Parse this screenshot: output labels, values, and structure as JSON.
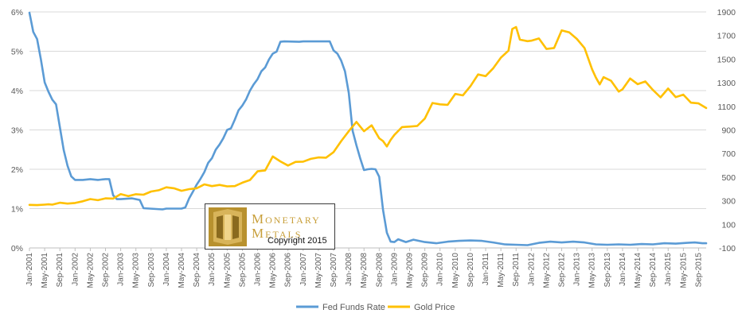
{
  "chart_data": {
    "type": "line",
    "title": "",
    "x_axis": {
      "tick_labels": [
        "Jan-2001",
        "May-2001",
        "Sep-2001",
        "Jan-2002",
        "May-2002",
        "Sep-2002",
        "Jan-2003",
        "May-2003",
        "Sep-2003",
        "Jan-2004",
        "May-2004",
        "Sep-2004",
        "Jan-2005",
        "May-2005",
        "Sep-2005",
        "Jan-2006",
        "May-2006",
        "Sep-2006",
        "Jan-2007",
        "May-2007",
        "Sep-2007",
        "Jan-2008",
        "May-2008",
        "Sep-2008",
        "Jan-2009",
        "May-2009",
        "Sep-2009",
        "Jan-2010",
        "May-2010",
        "Sep-2010",
        "Jan-2011",
        "May-2011",
        "Sep-2011",
        "Jan-2012",
        "May-2012",
        "Sep-2012",
        "Jan-2013",
        "May-2013",
        "Sep-2013",
        "Jan-2014",
        "May-2014",
        "Sep-2014",
        "Jan-2015",
        "May-2015",
        "Sep-2015"
      ],
      "range": [
        "2001-01",
        "2015-11"
      ]
    },
    "y_axis_left": {
      "tick_labels": [
        "0%",
        "1%",
        "2%",
        "3%",
        "4%",
        "5%",
        "6%"
      ],
      "range": [
        0,
        6
      ],
      "unit": "%"
    },
    "y_axis_right": {
      "tick_labels": [
        "-100",
        "100",
        "300",
        "500",
        "700",
        "900",
        "1100",
        "1300",
        "1500",
        "1700",
        "1900"
      ],
      "range": [
        -100,
        1900
      ]
    },
    "grid": "horizontal",
    "legend_position": "bottom",
    "series": [
      {
        "name": "Fed Funds Rate",
        "color": "#5b9bd5",
        "axis": "left",
        "points": [
          [
            "2001-01",
            5.98
          ],
          [
            "2001-02",
            5.49
          ],
          [
            "2001-03",
            5.31
          ],
          [
            "2001-04",
            4.8
          ],
          [
            "2001-05",
            4.21
          ],
          [
            "2001-06",
            3.97
          ],
          [
            "2001-07",
            3.77
          ],
          [
            "2001-08",
            3.65
          ],
          [
            "2001-09",
            3.07
          ],
          [
            "2001-10",
            2.49
          ],
          [
            "2001-11",
            2.09
          ],
          [
            "2001-12",
            1.82
          ],
          [
            "2002-01",
            1.73
          ],
          [
            "2002-03",
            1.73
          ],
          [
            "2002-05",
            1.75
          ],
          [
            "2002-07",
            1.73
          ],
          [
            "2002-09",
            1.75
          ],
          [
            "2002-10",
            1.75
          ],
          [
            "2002-11",
            1.34
          ],
          [
            "2002-12",
            1.24
          ],
          [
            "2003-01",
            1.24
          ],
          [
            "2003-04",
            1.26
          ],
          [
            "2003-06",
            1.22
          ],
          [
            "2003-07",
            1.01
          ],
          [
            "2003-12",
            0.98
          ],
          [
            "2004-01",
            1.0
          ],
          [
            "2004-05",
            1.0
          ],
          [
            "2004-06",
            1.03
          ],
          [
            "2004-07",
            1.26
          ],
          [
            "2004-08",
            1.43
          ],
          [
            "2004-09",
            1.61
          ],
          [
            "2004-10",
            1.76
          ],
          [
            "2004-11",
            1.93
          ],
          [
            "2004-12",
            2.16
          ],
          [
            "2005-01",
            2.28
          ],
          [
            "2005-02",
            2.5
          ],
          [
            "2005-03",
            2.63
          ],
          [
            "2005-04",
            2.79
          ],
          [
            "2005-05",
            3.0
          ],
          [
            "2005-06",
            3.04
          ],
          [
            "2005-07",
            3.26
          ],
          [
            "2005-08",
            3.5
          ],
          [
            "2005-09",
            3.62
          ],
          [
            "2005-10",
            3.78
          ],
          [
            "2005-11",
            4.0
          ],
          [
            "2005-12",
            4.16
          ],
          [
            "2006-01",
            4.29
          ],
          [
            "2006-02",
            4.49
          ],
          [
            "2006-03",
            4.59
          ],
          [
            "2006-04",
            4.79
          ],
          [
            "2006-05",
            4.94
          ],
          [
            "2006-06",
            4.99
          ],
          [
            "2006-07",
            5.24
          ],
          [
            "2006-08",
            5.25
          ],
          [
            "2006-12",
            5.24
          ],
          [
            "2007-01",
            5.25
          ],
          [
            "2007-08",
            5.25
          ],
          [
            "2007-09",
            5.02
          ],
          [
            "2007-10",
            4.94
          ],
          [
            "2007-11",
            4.76
          ],
          [
            "2007-12",
            4.49
          ],
          [
            "2008-01",
            3.94
          ],
          [
            "2008-02",
            2.98
          ],
          [
            "2008-03",
            2.61
          ],
          [
            "2008-04",
            2.28
          ],
          [
            "2008-05",
            1.98
          ],
          [
            "2008-06",
            2.0
          ],
          [
            "2008-07",
            2.01
          ],
          [
            "2008-08",
            2.0
          ],
          [
            "2008-09",
            1.81
          ],
          [
            "2008-10",
            0.97
          ],
          [
            "2008-11",
            0.39
          ],
          [
            "2008-12",
            0.16
          ],
          [
            "2009-01",
            0.15
          ],
          [
            "2009-02",
            0.22
          ],
          [
            "2009-04",
            0.15
          ],
          [
            "2009-06",
            0.21
          ],
          [
            "2009-09",
            0.15
          ],
          [
            "2009-12",
            0.12
          ],
          [
            "2010-03",
            0.16
          ],
          [
            "2010-06",
            0.18
          ],
          [
            "2010-09",
            0.19
          ],
          [
            "2010-12",
            0.18
          ],
          [
            "2011-03",
            0.14
          ],
          [
            "2011-06",
            0.09
          ],
          [
            "2011-09",
            0.08
          ],
          [
            "2011-12",
            0.07
          ],
          [
            "2012-03",
            0.13
          ],
          [
            "2012-06",
            0.16
          ],
          [
            "2012-09",
            0.14
          ],
          [
            "2012-12",
            0.16
          ],
          [
            "2013-03",
            0.14
          ],
          [
            "2013-06",
            0.09
          ],
          [
            "2013-09",
            0.08
          ],
          [
            "2013-12",
            0.09
          ],
          [
            "2014-03",
            0.08
          ],
          [
            "2014-06",
            0.1
          ],
          [
            "2014-09",
            0.09
          ],
          [
            "2014-12",
            0.12
          ],
          [
            "2015-03",
            0.11
          ],
          [
            "2015-06",
            0.13
          ],
          [
            "2015-08",
            0.14
          ],
          [
            "2015-10",
            0.12
          ],
          [
            "2015-11",
            0.12
          ]
        ]
      },
      {
        "name": "Gold Price",
        "color": "#ffc000",
        "axis": "right",
        "points": [
          [
            "2001-01",
            265
          ],
          [
            "2001-03",
            263
          ],
          [
            "2001-05",
            267
          ],
          [
            "2001-06",
            270
          ],
          [
            "2001-07",
            267
          ],
          [
            "2001-09",
            283
          ],
          [
            "2001-11",
            276
          ],
          [
            "2002-01",
            281
          ],
          [
            "2002-03",
            295
          ],
          [
            "2002-05",
            314
          ],
          [
            "2002-07",
            305
          ],
          [
            "2002-09",
            320
          ],
          [
            "2002-11",
            318
          ],
          [
            "2003-01",
            356
          ],
          [
            "2003-03",
            339
          ],
          [
            "2003-05",
            355
          ],
          [
            "2003-07",
            351
          ],
          [
            "2003-09",
            378
          ],
          [
            "2003-11",
            389
          ],
          [
            "2004-01",
            414
          ],
          [
            "2004-03",
            406
          ],
          [
            "2004-05",
            384
          ],
          [
            "2004-07",
            398
          ],
          [
            "2004-09",
            406
          ],
          [
            "2004-11",
            439
          ],
          [
            "2005-01",
            424
          ],
          [
            "2005-03",
            434
          ],
          [
            "2005-05",
            422
          ],
          [
            "2005-07",
            424
          ],
          [
            "2005-09",
            453
          ],
          [
            "2005-11",
            476
          ],
          [
            "2006-01",
            549
          ],
          [
            "2006-03",
            557
          ],
          [
            "2006-05",
            675
          ],
          [
            "2006-07",
            633
          ],
          [
            "2006-09",
            598
          ],
          [
            "2006-11",
            629
          ],
          [
            "2007-01",
            631
          ],
          [
            "2007-03",
            655
          ],
          [
            "2007-05",
            667
          ],
          [
            "2007-07",
            665
          ],
          [
            "2007-09",
            712
          ],
          [
            "2007-11",
            806
          ],
          [
            "2008-01",
            889
          ],
          [
            "2008-03",
            968
          ],
          [
            "2008-05",
            889
          ],
          [
            "2008-07",
            939
          ],
          [
            "2008-09",
            829
          ],
          [
            "2008-10",
            806
          ],
          [
            "2008-11",
            760
          ],
          [
            "2008-12",
            816
          ],
          [
            "2009-01",
            858
          ],
          [
            "2009-03",
            924
          ],
          [
            "2009-05",
            928
          ],
          [
            "2009-07",
            934
          ],
          [
            "2009-09",
            996
          ],
          [
            "2009-11",
            1128
          ],
          [
            "2010-01",
            1117
          ],
          [
            "2010-03",
            1113
          ],
          [
            "2010-05",
            1205
          ],
          [
            "2010-07",
            1193
          ],
          [
            "2010-09",
            1271
          ],
          [
            "2010-11",
            1370
          ],
          [
            "2011-01",
            1356
          ],
          [
            "2011-03",
            1423
          ],
          [
            "2011-05",
            1512
          ],
          [
            "2011-07",
            1572
          ],
          [
            "2011-08",
            1756
          ],
          [
            "2011-09",
            1772
          ],
          [
            "2011-10",
            1665
          ],
          [
            "2011-12",
            1652
          ],
          [
            "2012-01",
            1656
          ],
          [
            "2012-03",
            1675
          ],
          [
            "2012-05",
            1586
          ],
          [
            "2012-07",
            1594
          ],
          [
            "2012-09",
            1744
          ],
          [
            "2012-11",
            1726
          ],
          [
            "2013-01",
            1671
          ],
          [
            "2013-03",
            1594
          ],
          [
            "2013-05",
            1414
          ],
          [
            "2013-06",
            1343
          ],
          [
            "2013-07",
            1286
          ],
          [
            "2013-08",
            1347
          ],
          [
            "2013-10",
            1316
          ],
          [
            "2013-12",
            1225
          ],
          [
            "2014-01",
            1244
          ],
          [
            "2014-03",
            1336
          ],
          [
            "2014-05",
            1288
          ],
          [
            "2014-07",
            1311
          ],
          [
            "2014-09",
            1239
          ],
          [
            "2014-11",
            1176
          ],
          [
            "2015-01",
            1251
          ],
          [
            "2015-03",
            1178
          ],
          [
            "2015-05",
            1199
          ],
          [
            "2015-07",
            1131
          ],
          [
            "2015-09",
            1125
          ],
          [
            "2015-11",
            1086
          ]
        ]
      }
    ]
  },
  "logo": {
    "name_line1": "Monetary",
    "name_line2": "Metals",
    "copyright": "Copyright 2015"
  }
}
